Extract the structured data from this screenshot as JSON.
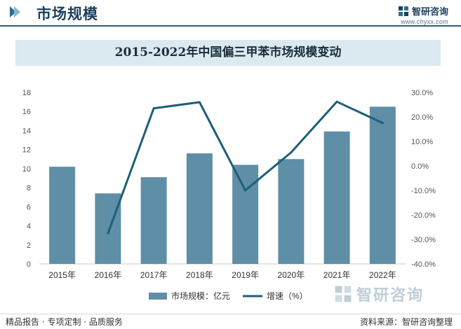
{
  "header": {
    "title": "市场规模",
    "brand_name": "智研咨询",
    "brand_url": "www.chyxx.com"
  },
  "chart_data": {
    "type": "bar",
    "title": "2015-2022年中国偏三甲苯市场规模变动",
    "categories": [
      "2015年",
      "2016年",
      "2017年",
      "2018年",
      "2019年",
      "2020年",
      "2021年",
      "2022年"
    ],
    "series": [
      {
        "name": "市场规模：亿元",
        "type": "bar",
        "axis": "left",
        "values": [
          10.2,
          7.4,
          9.1,
          11.6,
          10.4,
          11.0,
          13.9,
          16.5
        ]
      },
      {
        "name": "增速（%）",
        "type": "line",
        "axis": "right",
        "values": [
          null,
          -27.5,
          23.5,
          26.0,
          -10.0,
          5.5,
          26.2,
          17.5
        ]
      }
    ],
    "y_left": {
      "min": 0,
      "max": 18,
      "ticks": [
        "0",
        "2",
        "4",
        "6",
        "8",
        "10",
        "12",
        "14",
        "16",
        "18"
      ]
    },
    "y_right": {
      "min": -40,
      "max": 30,
      "ticks": [
        "-40.0%",
        "-30.0%",
        "-20.0%",
        "-10.0%",
        "0.0%",
        "10.0%",
        "20.0%",
        "30.0%"
      ]
    },
    "legend_position": "bottom",
    "grid": false,
    "colors": {
      "bar": "#5e8fa6",
      "line": "#1c5f7a"
    }
  },
  "footer": {
    "left": "精品报告 · 专项定制 · 品质服务",
    "right": "资料来源：智研咨询整理"
  },
  "watermark": {
    "text": "智研咨询"
  }
}
